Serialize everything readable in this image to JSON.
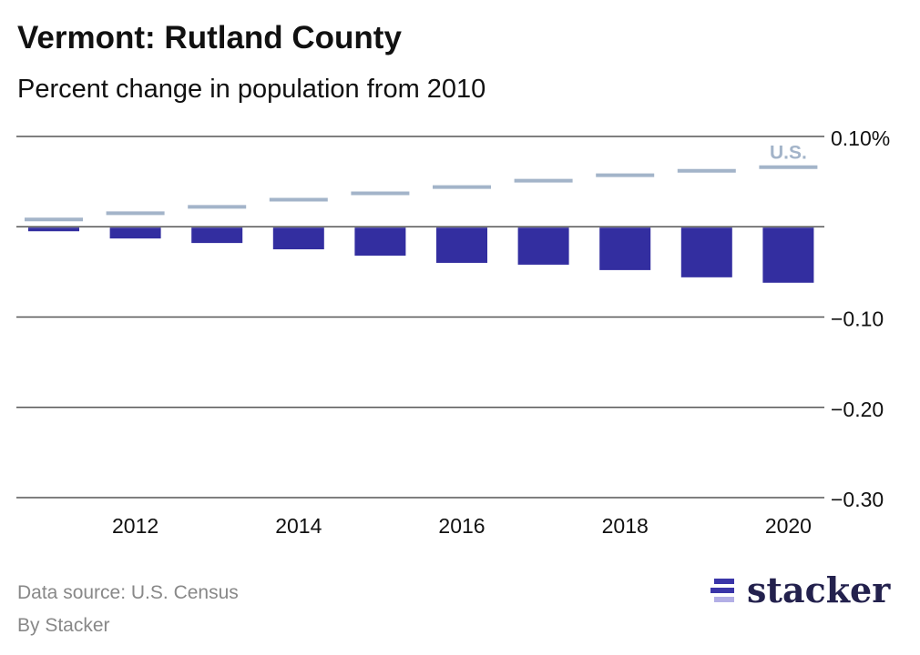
{
  "title": "Vermont: Rutland County",
  "subtitle": "Percent change in population from 2010",
  "footer": {
    "source": "Data source: U.S. Census",
    "byline": "By Stacker"
  },
  "logo": {
    "text": "stacker"
  },
  "colors": {
    "county": "#332ea0",
    "us": "#a3b4c9",
    "grid": "#555555",
    "logo_bar": "#3a35a8",
    "logo_bar_light": "#b3afe6"
  },
  "chart_data": {
    "type": "bar",
    "title": "Vermont: Rutland County",
    "subtitle": "Percent change in population from 2010",
    "x": [
      2011,
      2012,
      2013,
      2014,
      2015,
      2016,
      2017,
      2018,
      2019,
      2020
    ],
    "xticks": [
      "2012",
      "2014",
      "2016",
      "2018",
      "2020"
    ],
    "ylim": [
      -0.3,
      0.1
    ],
    "yticks": [
      0.1,
      0,
      -0.1,
      -0.2,
      -0.3
    ],
    "ytick_labels": [
      "0.10%",
      "",
      "−0.10",
      "−0.20",
      "−0.30"
    ],
    "grid": true,
    "series": [
      {
        "name": "Rutland County",
        "type": "bar",
        "values": [
          -0.005,
          -0.013,
          -0.018,
          -0.025,
          -0.032,
          -0.04,
          -0.042,
          -0.048,
          -0.056,
          -0.062
        ]
      },
      {
        "name": "U.S.",
        "type": "line-marker",
        "label": "U.S.",
        "values": [
          0.008,
          0.015,
          0.022,
          0.03,
          0.037,
          0.044,
          0.051,
          0.057,
          0.062,
          0.066
        ]
      }
    ]
  }
}
